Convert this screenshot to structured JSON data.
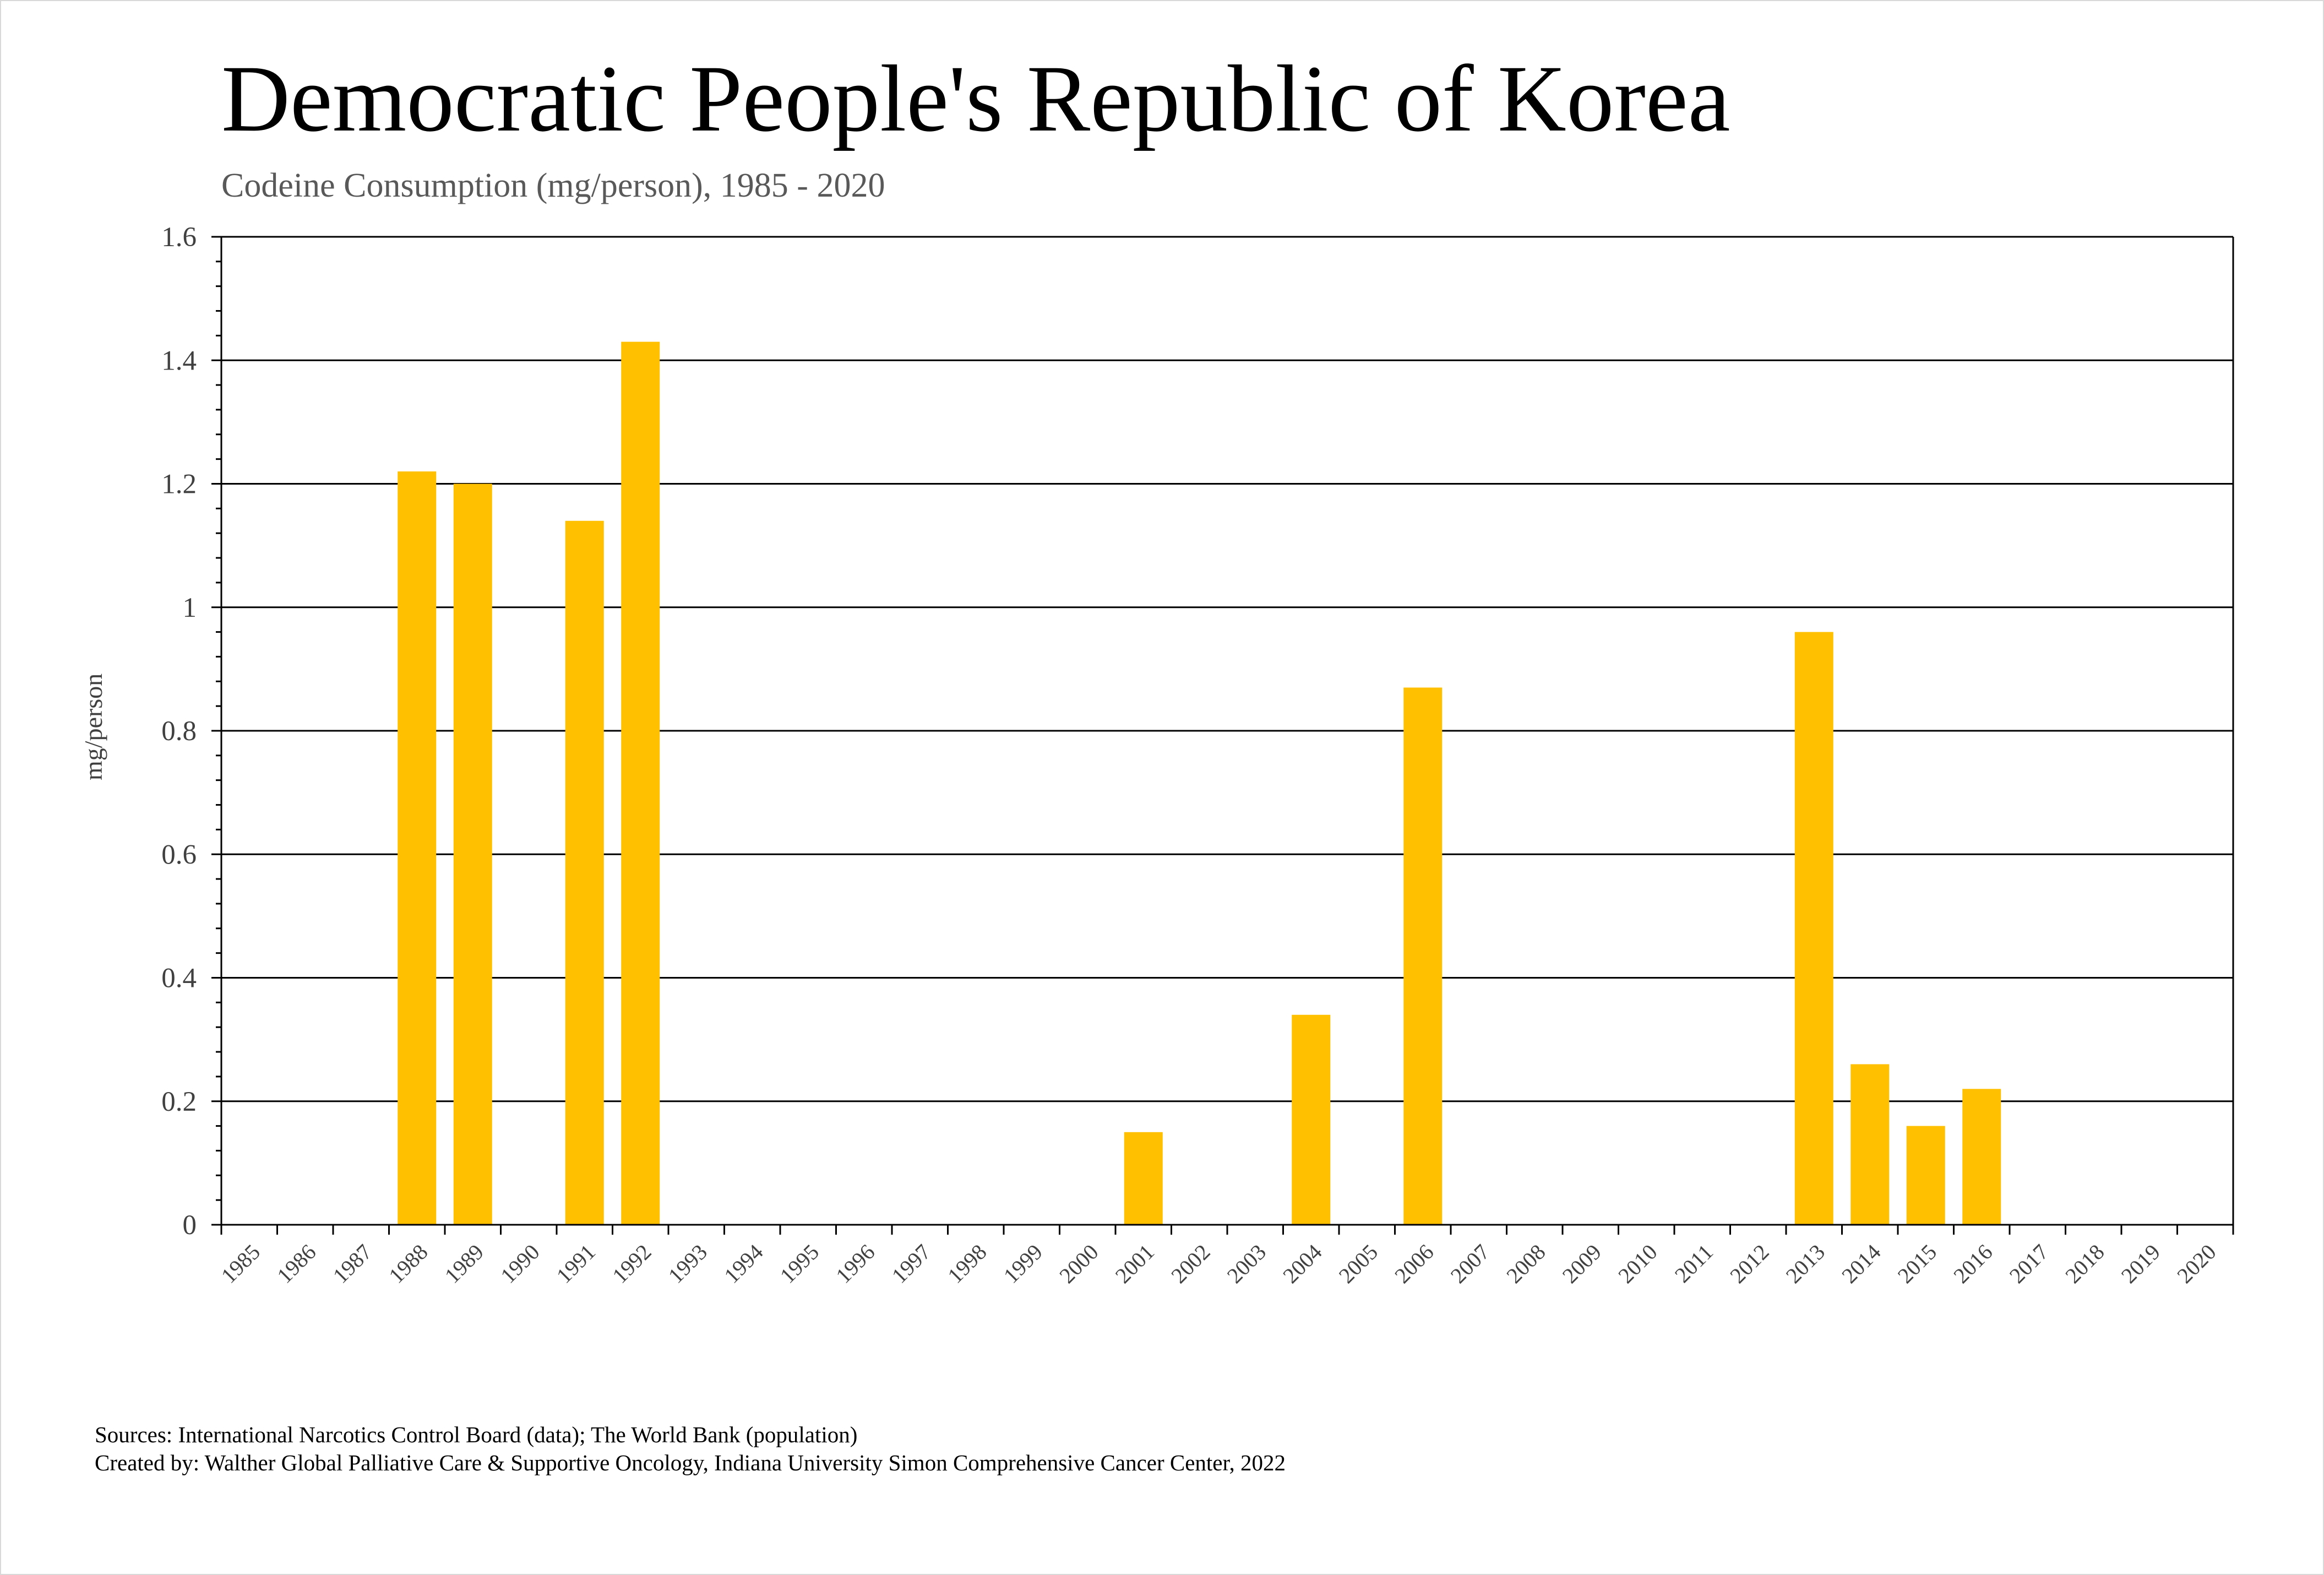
{
  "chart_data": {
    "type": "bar",
    "title": "Democratic People's Republic of Korea",
    "subtitle": "Codeine Consumption (mg/person), 1985 - 2020",
    "xlabel": "",
    "ylabel": "mg/person",
    "ylim": [
      0,
      1.6
    ],
    "yticks": [
      0,
      0.2,
      0.4,
      0.6,
      0.8,
      1,
      1.2,
      1.4,
      1.6
    ],
    "ytick_labels": [
      "0",
      "0.2",
      "0.4",
      "0.6",
      "0.8",
      "1",
      "1.2",
      "1.4",
      "1.6"
    ],
    "categories": [
      "1985",
      "1986",
      "1987",
      "1988",
      "1989",
      "1990",
      "1991",
      "1992",
      "1993",
      "1994",
      "1995",
      "1996",
      "1997",
      "1998",
      "1999",
      "2000",
      "2001",
      "2002",
      "2003",
      "2004",
      "2005",
      "2006",
      "2007",
      "2008",
      "2009",
      "2010",
      "2011",
      "2012",
      "2013",
      "2014",
      "2015",
      "2016",
      "2017",
      "2018",
      "2019",
      "2020"
    ],
    "values": [
      null,
      null,
      null,
      1.22,
      1.2,
      null,
      1.14,
      1.43,
      null,
      null,
      null,
      null,
      null,
      null,
      null,
      null,
      0.15,
      null,
      null,
      0.34,
      null,
      0.87,
      null,
      null,
      null,
      null,
      null,
      null,
      0.96,
      0.26,
      0.16,
      0.22,
      null,
      null,
      null,
      null
    ],
    "bar_color": "#FFC000",
    "grid": true,
    "legend": "none"
  },
  "footer": {
    "sources": "Sources: International Narcotics Control Board (data); The World Bank (population)",
    "created_by": "Created by: Walther Global Palliative Care & Supportive Oncology, Indiana University Simon Comprehensive Cancer Center, 2022"
  }
}
